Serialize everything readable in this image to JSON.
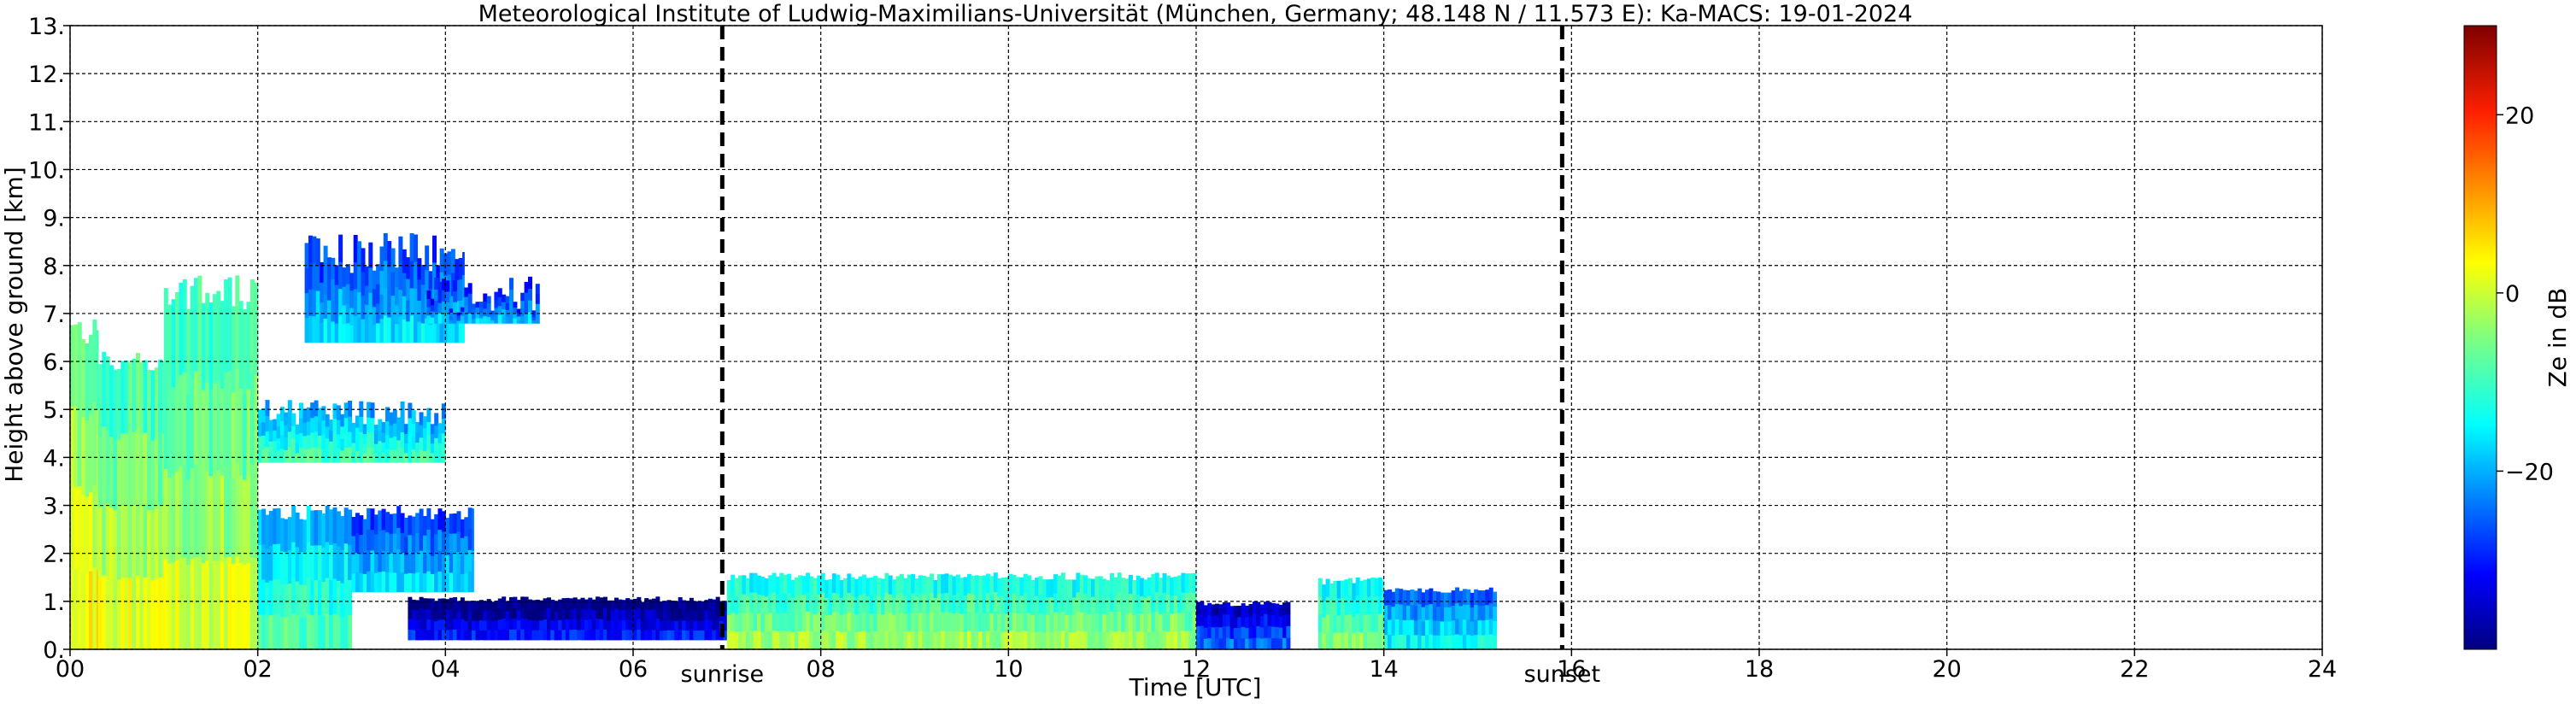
{
  "chart_data": {
    "type": "heatmap",
    "title": "Meteorological Institute of Ludwig-Maximilians-Universität (München, Germany; 48.148 N / 11.573 E):    Ka-MACS: 19-01-2024",
    "xlabel": "Time [UTC]",
    "ylabel": "Height above ground [km]",
    "xlim": [
      0,
      24
    ],
    "ylim": [
      0,
      13
    ],
    "x_ticks": [
      "00",
      "02",
      "04",
      "06",
      "08",
      "10",
      "12",
      "14",
      "16",
      "18",
      "20",
      "22",
      "24"
    ],
    "y_ticks": [
      "0.",
      "1.",
      "2.",
      "3.",
      "4.",
      "5.",
      "6.",
      "7.",
      "8.",
      "9.",
      "10.",
      "11.",
      "12.",
      "13."
    ],
    "grid": true,
    "markers": [
      {
        "label": "sunrise",
        "x": 6.95
      },
      {
        "label": "sunset",
        "x": 15.9
      }
    ],
    "colorbar": {
      "label": "Ze in dB",
      "range": [
        -40,
        30
      ],
      "ticks": [
        {
          "label": "20",
          "value": 20
        },
        {
          "label": "0",
          "value": 0
        },
        {
          "label": "−20",
          "value": -20
        }
      ],
      "colormap": "jet"
    },
    "echo_regions": [
      {
        "t_start": 0.0,
        "t_end": 0.3,
        "h_bottom": 0.0,
        "h_top": 7.0,
        "ze": -2
      },
      {
        "t_start": 0.3,
        "t_end": 1.0,
        "h_bottom": 0.0,
        "h_top": 6.3,
        "ze": -4
      },
      {
        "t_start": 1.0,
        "t_end": 2.0,
        "h_bottom": 0.0,
        "h_top": 7.8,
        "ze": -5
      },
      {
        "t_start": 2.0,
        "t_end": 3.0,
        "h_bottom": 0.0,
        "h_top": 3.0,
        "ze": -14
      },
      {
        "t_start": 3.0,
        "t_end": 4.3,
        "h_bottom": 1.2,
        "h_top": 3.0,
        "ze": -22
      },
      {
        "t_start": 2.0,
        "t_end": 4.0,
        "h_bottom": 3.9,
        "h_top": 5.2,
        "ze": -15
      },
      {
        "t_start": 2.5,
        "t_end": 4.2,
        "h_bottom": 6.4,
        "h_top": 8.7,
        "ze": -22
      },
      {
        "t_start": 3.8,
        "t_end": 5.0,
        "h_bottom": 6.8,
        "h_top": 7.8,
        "ze": -24
      },
      {
        "t_start": 3.6,
        "t_end": 7.0,
        "h_bottom": 0.2,
        "h_top": 1.1,
        "ze": -35
      },
      {
        "t_start": 7.0,
        "t_end": 12.0,
        "h_bottom": 0.0,
        "h_top": 1.6,
        "ze": -8
      },
      {
        "t_start": 12.0,
        "t_end": 13.0,
        "h_bottom": 0.0,
        "h_top": 1.0,
        "ze": -30
      },
      {
        "t_start": 13.3,
        "t_end": 14.0,
        "h_bottom": 0.0,
        "h_top": 1.5,
        "ze": -10
      },
      {
        "t_start": 14.0,
        "t_end": 15.2,
        "h_bottom": 0.0,
        "h_top": 1.3,
        "ze": -20
      }
    ]
  }
}
